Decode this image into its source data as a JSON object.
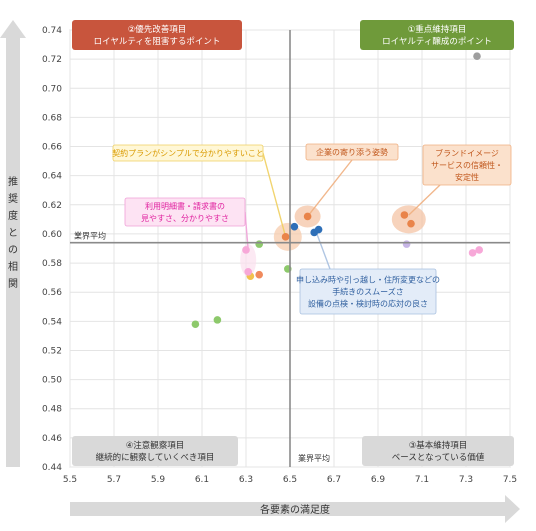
{
  "chart_data": {
    "type": "scatter",
    "xlabel": "各要素の満足度",
    "ylabel": "推奨度との相関",
    "xlim": [
      5.5,
      7.5
    ],
    "ylim": [
      0.44,
      0.74
    ],
    "x_ticks": [
      "5.5",
      "5.7",
      "5.9",
      "6.1",
      "6.3",
      "6.5",
      "6.7",
      "6.9",
      "7.1",
      "7.3",
      "7.5"
    ],
    "y_ticks": [
      "0.44",
      "0.46",
      "0.48",
      "0.50",
      "0.52",
      "0.54",
      "0.56",
      "0.58",
      "0.60",
      "0.62",
      "0.64",
      "0.66",
      "0.68",
      "0.70",
      "0.72",
      "0.74"
    ],
    "grid": true,
    "reference_lines": {
      "x": 6.5,
      "y": 0.594,
      "x_label": "業界平均",
      "y_label": "業界平均"
    },
    "quadrants": [
      {
        "line1": "②優先改善項目",
        "line2": "ロイヤルティを阻害するポイント",
        "color": "#c8553d"
      },
      {
        "line1": "①重点維持項目",
        "line2": "ロイヤルティ醸成のポイント",
        "color": "#6f9a3a"
      },
      {
        "line1": "④注意観察項目",
        "line2": "継続的に観察していくべき項目",
        "color": "#d9d9d9"
      },
      {
        "line1": "③基本維持項目",
        "line2": "ベースとなっている価値",
        "color": "#d9d9d9"
      }
    ],
    "annotations": [
      {
        "text": [
          "契約プランがシンプルで分かりやすいこと"
        ],
        "color": "#d99a00",
        "bg": "#fff7d6",
        "border": "#f0d060"
      },
      {
        "text": [
          "企業の寄り添う姿勢"
        ],
        "color": "#c0561b",
        "bg": "#fbe1cc",
        "border": "#f0b080"
      },
      {
        "text": [
          "ブランドイメージ",
          "サービスの信頼性・",
          "安定性"
        ],
        "color": "#c0561b",
        "bg": "#fbe1cc",
        "border": "#f0b080"
      },
      {
        "text": [
          "利用明細書・請求書の",
          "見やすさ、分かりやすさ"
        ],
        "color": "#e0219f",
        "bg": "#fde3f3",
        "border": "#f0a0d8"
      },
      {
        "text": [
          "申し込み時や引っ越し・住所変更などの",
          "手続きのスムーズさ",
          "設備の点検・検討時の応対の良さ"
        ],
        "color": "#2e5e9e",
        "bg": "#e3ecf8",
        "border": "#a8c0e0"
      }
    ],
    "series": [
      {
        "color": "#9e9e9e",
        "points": [
          [
            7.35,
            0.722
          ]
        ]
      },
      {
        "color": "#e9844a",
        "points": [
          [
            6.48,
            0.598
          ],
          [
            6.58,
            0.612
          ],
          [
            7.02,
            0.613
          ],
          [
            7.05,
            0.607
          ]
        ]
      },
      {
        "color": "#2e6fb8",
        "points": [
          [
            6.52,
            0.605
          ],
          [
            6.61,
            0.601
          ],
          [
            6.63,
            0.603
          ]
        ]
      },
      {
        "color": "#f2c14e",
        "points": [
          [
            6.32,
            0.571
          ]
        ]
      },
      {
        "color": "#f08a5d",
        "points": [
          [
            6.36,
            0.572
          ]
        ]
      },
      {
        "color": "#8dc96b",
        "points": [
          [
            6.07,
            0.538
          ],
          [
            6.17,
            0.541
          ],
          [
            6.36,
            0.593
          ],
          [
            6.49,
            0.576
          ]
        ]
      },
      {
        "color": "#f7a8d8",
        "points": [
          [
            6.3,
            0.589
          ],
          [
            6.31,
            0.574
          ],
          [
            7.33,
            0.587
          ],
          [
            7.36,
            0.589
          ]
        ]
      },
      {
        "color": "#c7b5e6",
        "points": [
          [
            7.03,
            0.593
          ]
        ]
      }
    ]
  }
}
